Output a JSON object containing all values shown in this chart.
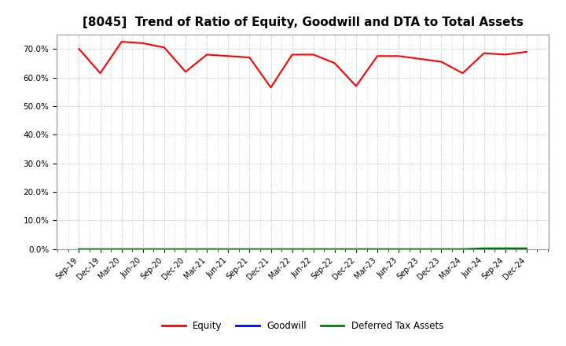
{
  "title": "[8045]  Trend of Ratio of Equity, Goodwill and DTA to Total Assets",
  "x_labels": [
    "Sep-19",
    "Dec-19",
    "Mar-20",
    "Jun-20",
    "Sep-20",
    "Dec-20",
    "Mar-21",
    "Jun-21",
    "Sep-21",
    "Dec-21",
    "Mar-22",
    "Jun-22",
    "Sep-22",
    "Dec-22",
    "Mar-23",
    "Jun-23",
    "Sep-23",
    "Dec-23",
    "Mar-24",
    "Jun-24",
    "Sep-24",
    "Dec-24"
  ],
  "equity": [
    70.0,
    61.5,
    72.5,
    72.0,
    70.5,
    62.0,
    68.0,
    67.5,
    67.0,
    56.5,
    68.0,
    68.0,
    65.0,
    57.0,
    67.5,
    67.5,
    66.5,
    65.5,
    61.5,
    68.5,
    68.0,
    69.0
  ],
  "goodwill": [
    0.0,
    0.0,
    0.0,
    0.0,
    0.0,
    0.0,
    0.0,
    0.0,
    0.0,
    0.0,
    0.0,
    0.0,
    0.0,
    0.0,
    0.0,
    0.0,
    0.0,
    0.0,
    0.0,
    0.0,
    0.0,
    0.0
  ],
  "dta": [
    0.0,
    0.0,
    0.0,
    0.0,
    0.0,
    0.0,
    0.0,
    0.0,
    0.0,
    0.0,
    0.0,
    0.0,
    0.0,
    0.0,
    0.0,
    0.0,
    0.0,
    0.0,
    0.0,
    0.3,
    0.3,
    0.3
  ],
  "equity_color": "#FF0000",
  "goodwill_color": "#0000FF",
  "dta_color": "#008000",
  "background_color": "#FFFFFF",
  "grid_color": "#AAAAAA",
  "ylim_min": 0,
  "ylim_max": 75,
  "yticks": [
    0,
    10,
    20,
    30,
    40,
    50,
    60,
    70
  ],
  "legend_labels": [
    "Equity",
    "Goodwill",
    "Deferred Tax Assets"
  ],
  "title_fontsize": 11
}
